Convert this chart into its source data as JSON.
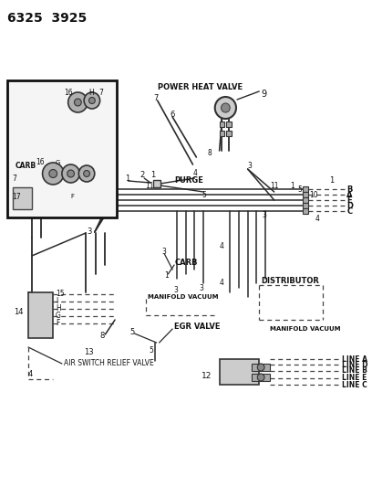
{
  "title": "6325  3925",
  "bg_color": "#ffffff",
  "lc": "#2a2a2a",
  "dc": "#444444",
  "gray_fill": "#c0c0c0",
  "dark_fill": "#888888",
  "labels": {
    "power_heat_valve": "POWER HEAT VALVE",
    "purge": "PURGE",
    "carb_center": "CARB",
    "carb_box": "CARB",
    "manifold_vacuum_l": "MANIFOLD VACUUM",
    "manifold_vacuum_r": "MANIFOLD VACUUM",
    "distributor": "DISTRIBUTOR",
    "egr_valve": "EGR VALVE",
    "air_switch": "AIR SWITCH RELIEF VALVE"
  },
  "right_alpha": [
    "B",
    "A",
    "E",
    "D",
    "C"
  ],
  "line_labels": [
    "LINE A",
    "LINE D",
    "LINE B",
    "LINE E",
    "LINE C"
  ]
}
